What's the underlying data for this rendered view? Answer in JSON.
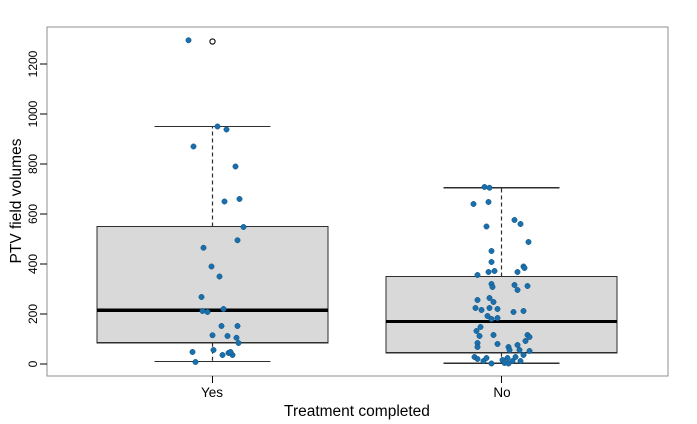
{
  "chart_data": {
    "type": "boxplot",
    "subtype": "boxplot-with-jittered-points",
    "title": "",
    "xlabel": "Treatment completed",
    "ylabel": "PTV field volumes",
    "categories": [
      "Yes",
      "No"
    ],
    "y_axis": {
      "min": 0,
      "max": 1200,
      "tick_step": 200,
      "tick_labels": [
        "0",
        "200",
        "400",
        "600",
        "800",
        "1000",
        "1200"
      ],
      "tick_values": [
        0,
        200,
        400,
        600,
        800,
        1000,
        1200
      ]
    },
    "legend": null,
    "grid": false,
    "groups": [
      {
        "label": "Yes",
        "stats": {
          "whisker_low": 10,
          "q1": 85,
          "median": 215,
          "q3": 550,
          "whisker_high": 950
        },
        "outliers": [
          1290
        ],
        "points": [
          [
            -24,
            1295
          ],
          [
            5,
            950
          ],
          [
            14,
            938
          ],
          [
            -19,
            870
          ],
          [
            23,
            790
          ],
          [
            27,
            660
          ],
          [
            12,
            650
          ],
          [
            31,
            548
          ],
          [
            25,
            495
          ],
          [
            -9,
            465
          ],
          [
            -1,
            390
          ],
          [
            7,
            350
          ],
          [
            -11,
            268
          ],
          [
            11,
            220
          ],
          [
            -10,
            212
          ],
          [
            -5,
            208
          ],
          [
            9,
            152
          ],
          [
            25,
            152
          ],
          [
            0,
            115
          ],
          [
            15,
            112
          ],
          [
            24,
            105
          ],
          [
            26,
            84
          ],
          [
            -20,
            48
          ],
          [
            1,
            56
          ],
          [
            10,
            36
          ],
          [
            16,
            44
          ],
          [
            20,
            36
          ],
          [
            18,
            48
          ],
          [
            -17,
            8
          ]
        ]
      },
      {
        "label": "No",
        "stats": {
          "whisker_low": 3,
          "q1": 45,
          "median": 170,
          "q3": 350,
          "whisker_high": 705
        },
        "outliers": [],
        "points": [
          [
            -17,
            708
          ],
          [
            -12,
            705
          ],
          [
            -28,
            640
          ],
          [
            -13,
            648
          ],
          [
            13,
            576
          ],
          [
            19,
            560
          ],
          [
            -15,
            550
          ],
          [
            27,
            488
          ],
          [
            -10,
            452
          ],
          [
            -10,
            408
          ],
          [
            22,
            390
          ],
          [
            -7,
            372
          ],
          [
            -13,
            368
          ],
          [
            -24,
            356
          ],
          [
            16,
            368
          ],
          [
            23,
            384
          ],
          [
            -10,
            320
          ],
          [
            -9,
            308
          ],
          [
            13,
            316
          ],
          [
            16,
            296
          ],
          [
            26,
            312
          ],
          [
            -24,
            256
          ],
          [
            -12,
            264
          ],
          [
            -8,
            248
          ],
          [
            -26,
            224
          ],
          [
            -20,
            216
          ],
          [
            -12,
            224
          ],
          [
            -4,
            220
          ],
          [
            -14,
            192
          ],
          [
            -4,
            184
          ],
          [
            12,
            208
          ],
          [
            22,
            212
          ],
          [
            -10,
            180
          ],
          [
            -25,
            132
          ],
          [
            -21,
            148
          ],
          [
            -22,
            112
          ],
          [
            -24,
            84
          ],
          [
            -24,
            68
          ],
          [
            -8,
            116
          ],
          [
            -4,
            80
          ],
          [
            7,
            68
          ],
          [
            16,
            76
          ],
          [
            26,
            116
          ],
          [
            28,
            108
          ],
          [
            24,
            92
          ],
          [
            8,
            56
          ],
          [
            18,
            56
          ],
          [
            28,
            52
          ],
          [
            -27,
            28
          ],
          [
            -24,
            20
          ],
          [
            -18,
            12
          ],
          [
            -15,
            24
          ],
          [
            1,
            16
          ],
          [
            3,
            4
          ],
          [
            6,
            24
          ],
          [
            11,
            12
          ],
          [
            14,
            28
          ],
          [
            19,
            12
          ],
          [
            22,
            36
          ],
          [
            -10,
            2
          ],
          [
            7,
            2
          ]
        ]
      }
    ],
    "colors": {
      "point": "#1b6fad",
      "box_fill": "#d9d9d9",
      "box_stroke": "#2e2e2e",
      "median": "#000000",
      "whisker": "#2e2e2e",
      "frame": "#8f8f8f",
      "outlier_fill": "#ffffff",
      "outlier_stroke": "#000000",
      "background": "#ffffff"
    }
  }
}
